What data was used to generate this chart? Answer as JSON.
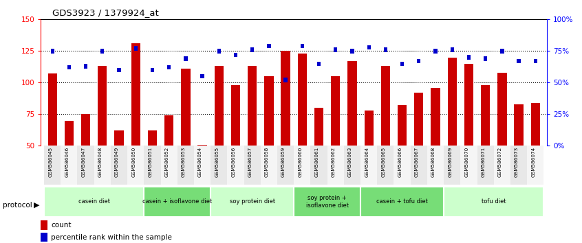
{
  "title": "GDS3923 / 1379924_at",
  "samples": [
    "GSM586045",
    "GSM586046",
    "GSM586047",
    "GSM586048",
    "GSM586049",
    "GSM586050",
    "GSM586051",
    "GSM586052",
    "GSM586053",
    "GSM586054",
    "GSM586055",
    "GSM586056",
    "GSM586057",
    "GSM586058",
    "GSM586059",
    "GSM586060",
    "GSM586061",
    "GSM586062",
    "GSM586063",
    "GSM586064",
    "GSM586065",
    "GSM586066",
    "GSM586067",
    "GSM586068",
    "GSM586069",
    "GSM586070",
    "GSM586071",
    "GSM586072",
    "GSM586073",
    "GSM586074"
  ],
  "counts": [
    107,
    70,
    75,
    113,
    62,
    131,
    62,
    74,
    111,
    51,
    113,
    98,
    113,
    105,
    125,
    123,
    80,
    105,
    117,
    78,
    113,
    82,
    92,
    96,
    120,
    115,
    98,
    108,
    83,
    84
  ],
  "percentile_ranks": [
    75,
    62,
    63,
    75,
    60,
    77,
    60,
    62,
    69,
    55,
    75,
    72,
    76,
    79,
    52,
    79,
    65,
    76,
    75,
    78,
    76,
    65,
    67,
    75,
    76,
    70,
    69,
    75,
    67,
    67
  ],
  "groups": [
    {
      "name": "casein diet",
      "start": 0,
      "end": 6,
      "color": "#ccffcc"
    },
    {
      "name": "casein + isoflavone diet",
      "start": 6,
      "end": 10,
      "color": "#77dd77"
    },
    {
      "name": "soy protein diet",
      "start": 10,
      "end": 15,
      "color": "#ccffcc"
    },
    {
      "name": "soy protein +\nisoflavone diet",
      "start": 15,
      "end": 19,
      "color": "#77dd77"
    },
    {
      "name": "casein + tofu diet",
      "start": 19,
      "end": 24,
      "color": "#77dd77"
    },
    {
      "name": "tofu diet",
      "start": 24,
      "end": 30,
      "color": "#ccffcc"
    }
  ],
  "ylim_left": [
    50,
    150
  ],
  "ylim_right": [
    0,
    100
  ],
  "yticks_left": [
    50,
    75,
    100,
    125,
    150
  ],
  "yticks_right": [
    0,
    25,
    50,
    75,
    100
  ],
  "ytick_labels_right": [
    "0%",
    "25%",
    "50%",
    "75%",
    "100%"
  ],
  "bar_color": "#cc0000",
  "percentile_color": "#0000cc",
  "background_color": "#ffffff"
}
